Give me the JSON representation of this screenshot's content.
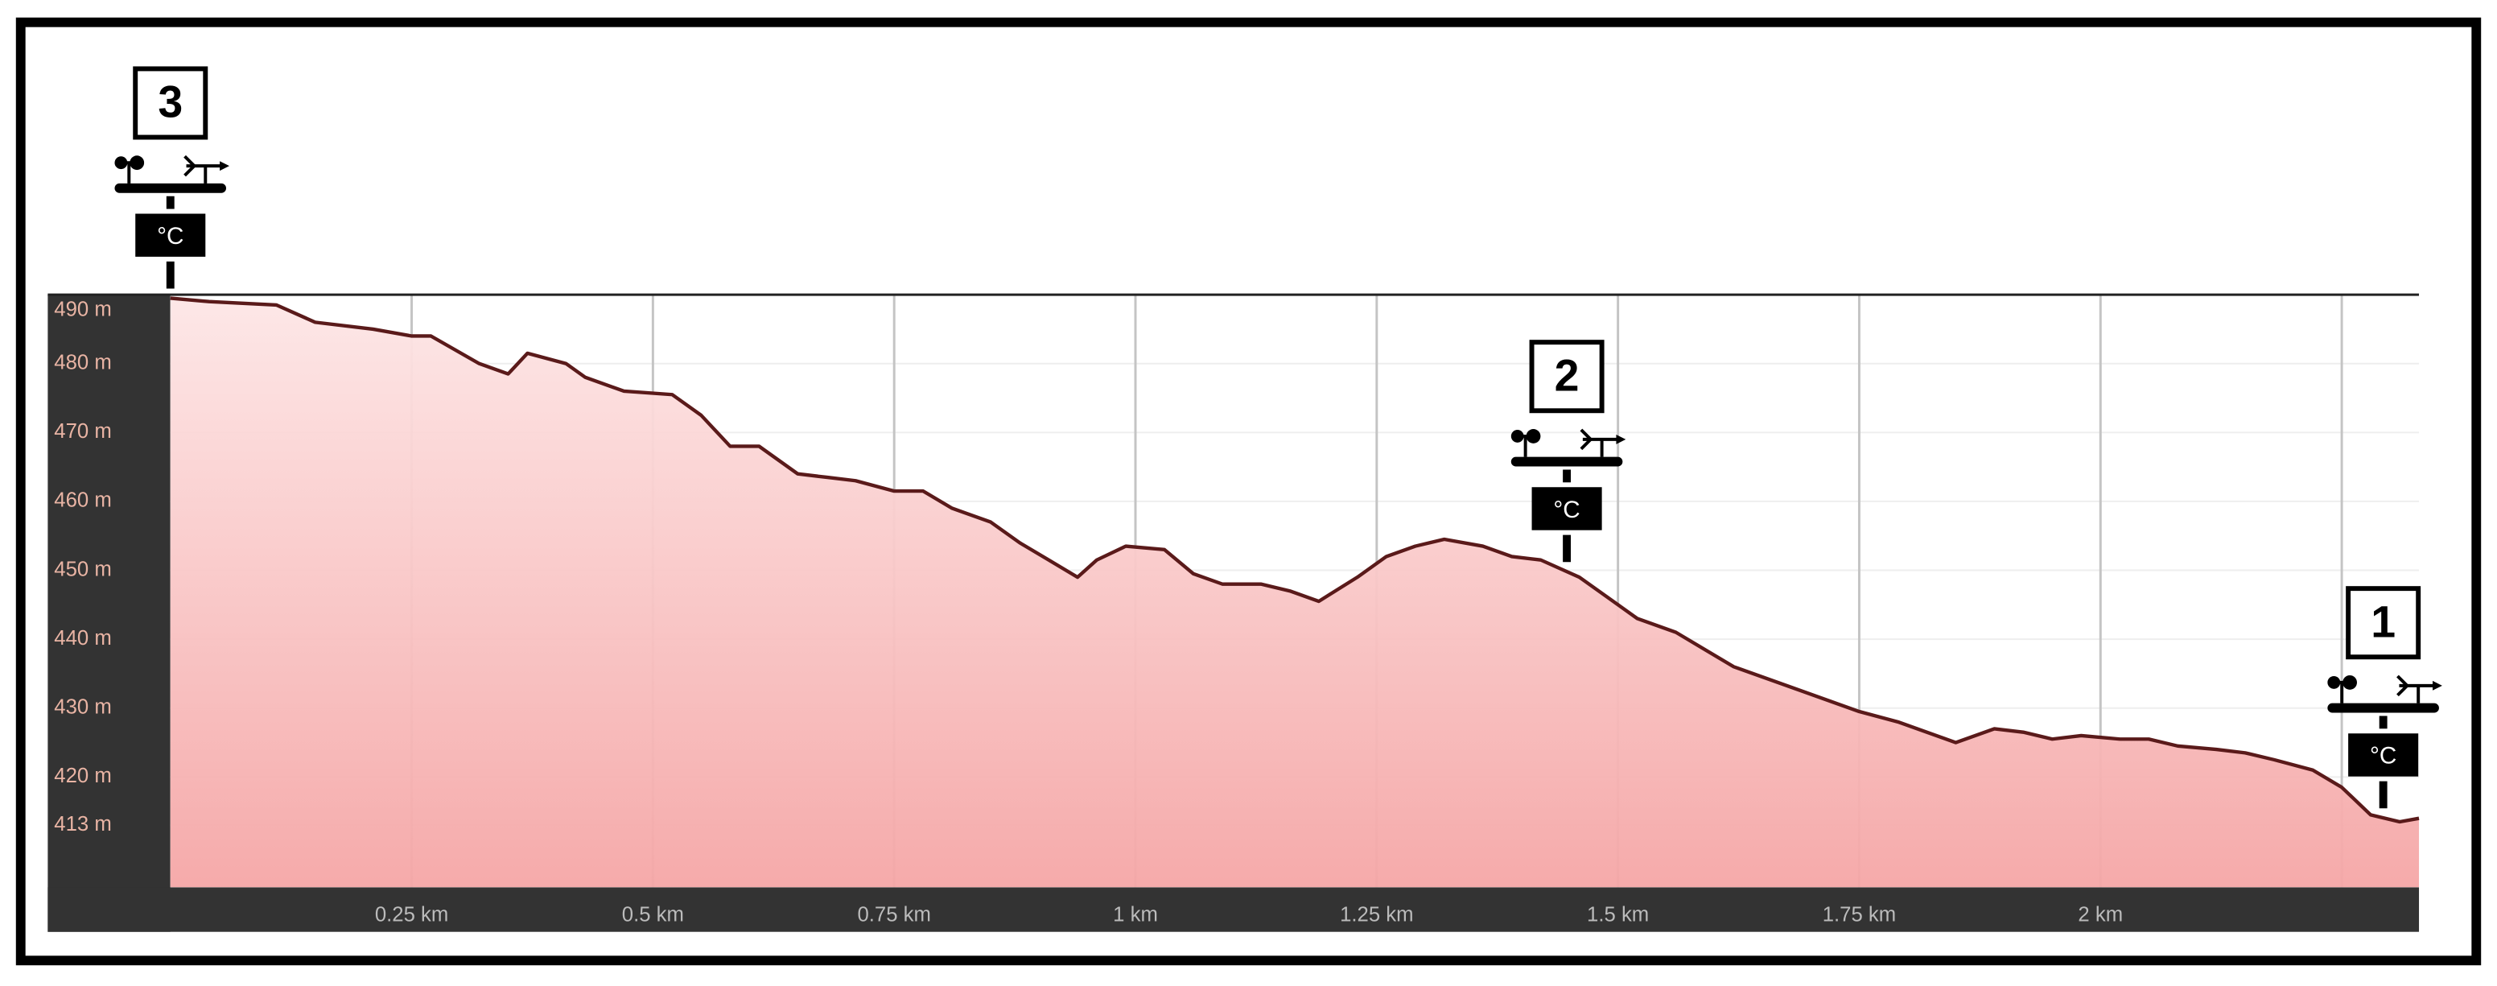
{
  "chart_data": {
    "type": "area",
    "x": [
      0,
      0.04,
      0.11,
      0.15,
      0.21,
      0.25,
      0.27,
      0.32,
      0.35,
      0.37,
      0.41,
      0.43,
      0.47,
      0.52,
      0.55,
      0.58,
      0.61,
      0.65,
      0.68,
      0.71,
      0.75,
      0.78,
      0.81,
      0.85,
      0.88,
      0.91,
      0.94,
      0.96,
      0.99,
      1.03,
      1.06,
      1.09,
      1.13,
      1.16,
      1.19,
      1.23,
      1.26,
      1.29,
      1.32,
      1.36,
      1.39,
      1.42,
      1.46,
      1.49,
      1.52,
      1.56,
      1.59,
      1.62,
      1.65,
      1.69,
      1.72,
      1.75,
      1.79,
      1.82,
      1.85,
      1.89,
      1.92,
      1.95,
      1.98,
      2.02,
      2.05,
      2.08,
      2.12,
      2.15,
      2.18,
      2.22,
      2.25,
      2.28,
      2.31,
      2.33
    ],
    "values": [
      489.5,
      489,
      488.5,
      486,
      485,
      484,
      484,
      480,
      478.5,
      481.5,
      480,
      478,
      476,
      475.5,
      472.5,
      468,
      468,
      464,
      463.5,
      463,
      461.5,
      461.5,
      459,
      457,
      454,
      451.5,
      449,
      451.5,
      453.5,
      453,
      449.5,
      448,
      448,
      447,
      445.5,
      449,
      452,
      453.5,
      454.5,
      453.5,
      452,
      451.5,
      449,
      446,
      443,
      441,
      438.5,
      436,
      434.5,
      432.5,
      431,
      429.5,
      428,
      426.5,
      425,
      427,
      426.5,
      425.5,
      426,
      425.5,
      425.5,
      424.5,
      424,
      423.5,
      422.5,
      421,
      418.5,
      414.5,
      413.5,
      414
    ],
    "xlim": [
      0,
      2.33
    ],
    "ylim": [
      404,
      490
    ],
    "xticks": [
      {
        "value": 0.25,
        "label": "0.25 km"
      },
      {
        "value": 0.5,
        "label": "0.5 km"
      },
      {
        "value": 0.75,
        "label": "0.75 km"
      },
      {
        "value": 1,
        "label": "1 km"
      },
      {
        "value": 1.25,
        "label": "1.25 km"
      },
      {
        "value": 1.5,
        "label": "1.5 km"
      },
      {
        "value": 1.75,
        "label": "1.75 km"
      },
      {
        "value": 2,
        "label": "2 km"
      },
      {
        "value": 2.25,
        "label": ""
      }
    ],
    "yticks": [
      {
        "value": 490,
        "label": "490 m"
      },
      {
        "value": 480,
        "label": "480 m"
      },
      {
        "value": 470,
        "label": "470 m"
      },
      {
        "value": 460,
        "label": "460 m"
      },
      {
        "value": 450,
        "label": "450 m"
      },
      {
        "value": 440,
        "label": "440 m"
      },
      {
        "value": 430,
        "label": "430 m"
      },
      {
        "value": 420,
        "label": "420 m"
      },
      {
        "value": 413,
        "label": "413 m"
      }
    ],
    "grid": true,
    "color": "#5a1a1a",
    "sensor_label": "°C",
    "annotations": [
      {
        "label": "3",
        "x": 0
      },
      {
        "label": "2",
        "x": 1.447
      },
      {
        "label": "1",
        "x": 2.293
      }
    ]
  }
}
